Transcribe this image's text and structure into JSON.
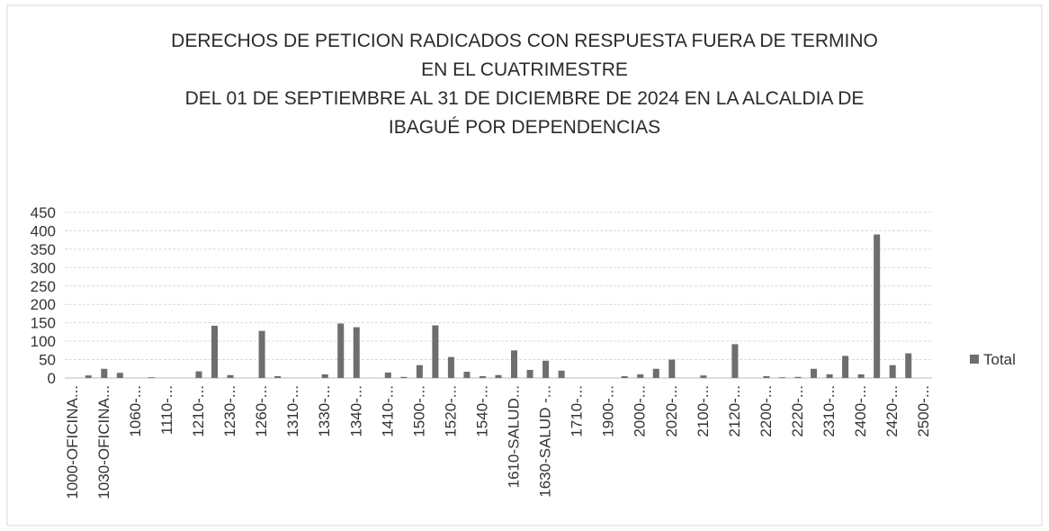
{
  "chart_data": {
    "type": "bar",
    "title": [
      "DERECHOS DE PETICION RADICADOS CON RESPUESTA  FUERA DE TERMINO",
      "EN EL CUATRIMESTRE",
      "DEL 01 DE SEPTIEMBRE AL 31 DE DICIEMBRE DE 2024 EN LA ALCALDIA DE",
      "IBAGUÉ POR DEPENDENCIAS"
    ],
    "categories": [
      "1000-OFICINA...",
      null,
      "1030-OFICINA...",
      null,
      "1060-...",
      null,
      "1110-...",
      null,
      "1210-...",
      null,
      "1230-...",
      null,
      "1260-...",
      null,
      "1310-...",
      null,
      "1330-...",
      null,
      "1340-...",
      null,
      "1410-...",
      null,
      "1500-...",
      null,
      "1520-...",
      null,
      "1540-...",
      null,
      "1610-SALUD...",
      null,
      "1630-SALUD -...",
      null,
      "1710-...",
      null,
      "1900-...",
      null,
      "2000-...",
      null,
      "2020-...",
      null,
      "2100-...",
      null,
      "2120-...",
      null,
      "2200-...",
      null,
      "2220-...",
      null,
      "2310-...",
      null,
      "2400-...",
      null,
      "2420-...",
      null,
      "2500-..."
    ],
    "series": [
      {
        "name": "Total",
        "color": "#6e6e6e",
        "values": [
          0,
          7,
          25,
          14,
          0,
          2,
          0,
          0,
          18,
          142,
          8,
          0,
          128,
          5,
          0,
          0,
          10,
          148,
          138,
          0,
          15,
          3,
          35,
          143,
          57,
          17,
          5,
          8,
          75,
          22,
          47,
          20,
          0,
          0,
          0,
          5,
          10,
          25,
          50,
          0,
          7,
          0,
          92,
          0,
          5,
          2,
          3,
          25,
          10,
          60,
          10,
          390,
          35,
          67,
          0
        ]
      }
    ],
    "ylim": [
      0,
      450
    ],
    "yticks": [
      0,
      50,
      100,
      150,
      200,
      250,
      300,
      350,
      400,
      450
    ],
    "grid": true,
    "legend": "right"
  }
}
